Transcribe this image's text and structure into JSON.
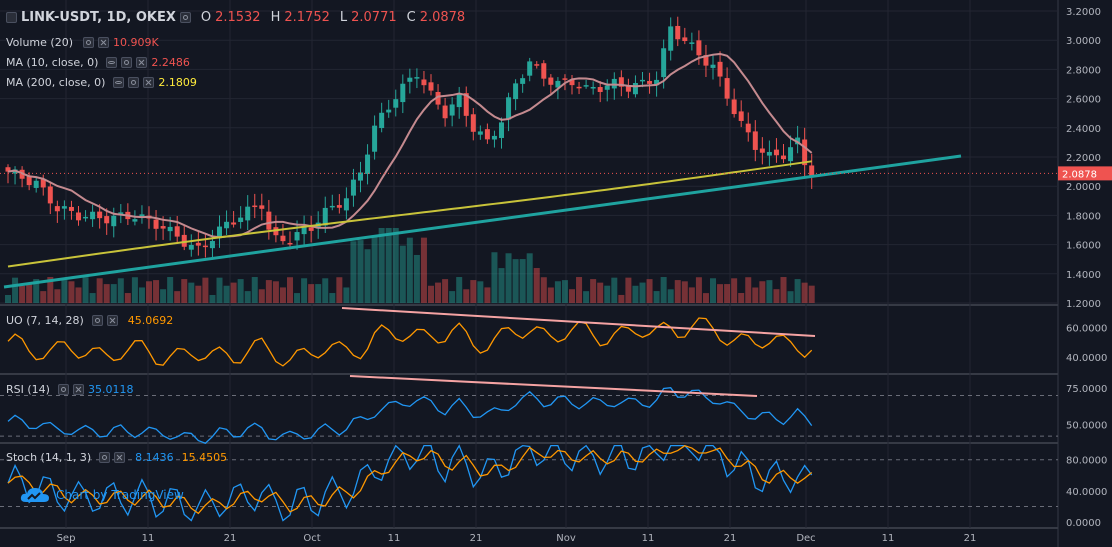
{
  "header": {
    "symbol": "LINK-USDT, 1D, OKEX",
    "ohlc": [
      {
        "label": "O",
        "value": "2.1532"
      },
      {
        "label": "H",
        "value": "2.1752"
      },
      {
        "label": "L",
        "value": "2.0771"
      },
      {
        "label": "C",
        "value": "2.0878"
      }
    ]
  },
  "indicators": {
    "volume": {
      "label": "Volume (20)",
      "value": "10.909K",
      "color": "#ef5350"
    },
    "ma10": {
      "label": "MA (10, close, 0)",
      "value": "2.2486",
      "color": "#ef5350"
    },
    "ma200": {
      "label": "MA (200, close, 0)",
      "value": "2.1809",
      "color": "#ffeb3b"
    }
  },
  "price_axis": {
    "ticks": [
      "3.2000",
      "3.0000",
      "2.8000",
      "2.6000",
      "2.4000",
      "2.2000",
      "2.0000",
      "1.8000",
      "1.6000",
      "1.4000",
      "1.2000"
    ],
    "current_price": "2.0878",
    "current_price_color": "#ef5350"
  },
  "panes": {
    "uo": {
      "label": "UO (7, 14, 28)",
      "value": "45.0692",
      "color": "#ff9800",
      "ticks": [
        "60.0000",
        "40.0000"
      ]
    },
    "rsi": {
      "label": "RSI (14)",
      "value": "35.0118",
      "color": "#2196f3",
      "ticks": [
        "75.0000",
        "50.0000"
      ]
    },
    "stoch": {
      "label": "Stoch (14, 1, 3)",
      "k_value": "8.1436",
      "d_value": "15.4505",
      "k_color": "#2196f3",
      "d_color": "#ff9800",
      "ticks": [
        "80.0000",
        "40.0000",
        "0.0000"
      ]
    }
  },
  "time_axis": {
    "labels": [
      "Sep",
      "11",
      "21",
      "Oct",
      "11",
      "21",
      "Nov",
      "11",
      "21",
      "Dec",
      "11",
      "21"
    ]
  },
  "branding": {
    "text": "Chart by TradingView",
    "icon": "tradingview-cloud-icon"
  },
  "colors": {
    "up": "#26a69a",
    "down": "#ef5350",
    "ma10": "#c48a8f",
    "ma200": "#c8c33a",
    "trendline": "#1fa3a0",
    "divergence": "#f5a3a3"
  }
}
